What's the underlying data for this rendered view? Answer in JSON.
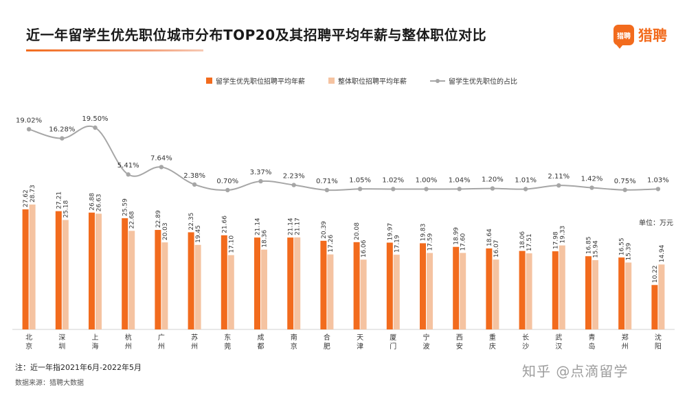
{
  "header": {
    "title": "近一年留学生优先职位城市分布TOP20及其招聘平均年薪与整体职位对比",
    "logo_text": "猎聘",
    "logo_mark_text": "猎聘"
  },
  "colors": {
    "accent": "#f26b1d",
    "series_primary": "#f26b1d",
    "series_secondary": "#f5c3a1",
    "series_line": "#a6a6a6"
  },
  "chart_data": {
    "type": "bar",
    "categories": [
      "北京",
      "深圳",
      "上海",
      "杭州",
      "广州",
      "苏州",
      "东莞",
      "成都",
      "南京",
      "合肥",
      "天津",
      "厦门",
      "宁波",
      "西安",
      "重庆",
      "长沙",
      "武汉",
      "青岛",
      "郑州",
      "沈阳"
    ],
    "category_labels": [
      "北\n京",
      "深\n圳",
      "上\n海",
      "杭\n州",
      "广\n州",
      "苏\n州",
      "东\n莞",
      "成\n都",
      "南\n京",
      "合\n肥",
      "天\n津",
      "厦\n门",
      "宁\n波",
      "西\n安",
      "重\n庆",
      "长\n沙",
      "武\n汉",
      "青\n岛",
      "郑\n州",
      "沈\n阳"
    ],
    "series": [
      {
        "name": "留学生优先职位招聘平均年薪",
        "type": "bar",
        "values": [
          27.62,
          27.21,
          26.88,
          25.59,
          22.89,
          22.35,
          21.66,
          21.14,
          21.14,
          20.39,
          20.08,
          19.97,
          19.83,
          18.99,
          18.64,
          18.06,
          17.98,
          16.85,
          16.55,
          10.22
        ]
      },
      {
        "name": "整体职位招聘平均年薪",
        "type": "bar",
        "values": [
          28.73,
          25.18,
          26.63,
          22.68,
          20.03,
          19.45,
          17.1,
          18.36,
          21.17,
          17.26,
          16.06,
          17.19,
          17.59,
          17.6,
          16.07,
          17.51,
          19.33,
          15.94,
          15.39,
          14.94
        ]
      },
      {
        "name": "留学生优先职位的占比",
        "type": "line",
        "unit": "%",
        "values": [
          19.02,
          16.28,
          19.5,
          5.41,
          7.64,
          2.38,
          0.7,
          3.37,
          2.23,
          0.71,
          1.05,
          1.02,
          1.0,
          1.04,
          1.2,
          1.01,
          2.11,
          1.42,
          0.75,
          1.03
        ]
      }
    ],
    "unit_label": "单位：万元",
    "legend_position": "top"
  },
  "footer": {
    "note": "注：近一年指2021年6月-2022年5月",
    "source": "数据来源：猎聘大数据",
    "watermark": "知乎 @点滴留学"
  }
}
